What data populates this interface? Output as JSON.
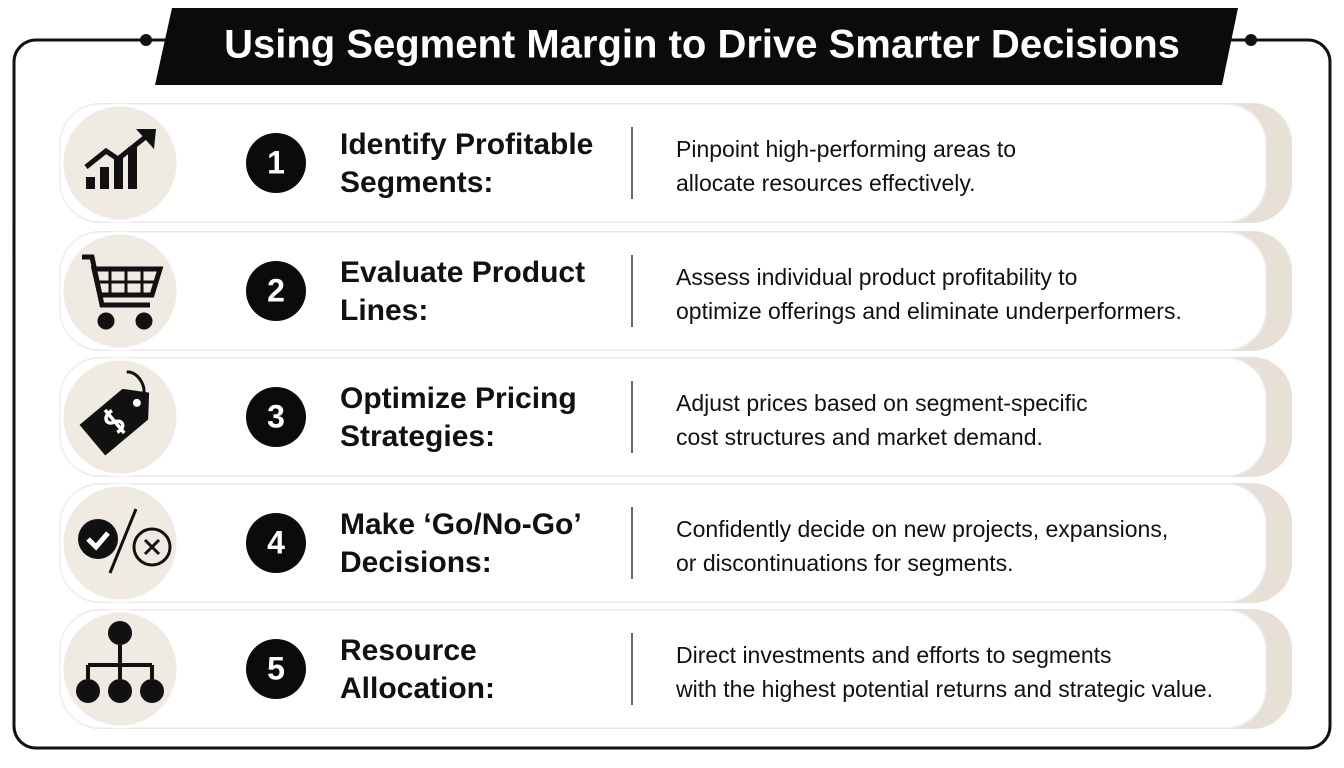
{
  "header": {
    "title": "Using Segment Margin to Drive Smarter Decisions"
  },
  "items": [
    {
      "number": 1,
      "heading": [
        "Identify Profitable",
        "Segments:"
      ],
      "description": [
        "Pinpoint high-performing areas to",
        "allocate resources effectively."
      ]
    },
    {
      "number": 2,
      "heading": [
        "Evaluate Product",
        "Lines:"
      ],
      "description": [
        "Assess individual product profitability to",
        "optimize offerings and eliminate underperformers."
      ]
    },
    {
      "number": 3,
      "heading": [
        "Optimize Pricing",
        "Strategies:"
      ],
      "description": [
        "Adjust prices based on segment-specific",
        "cost structures and market demand."
      ]
    },
    {
      "number": 4,
      "heading": [
        "Make ‘Go/No-Go’",
        "Decisions:"
      ],
      "description": [
        "Confidently decide on new projects, expansions,",
        "or discontinuations for segments."
      ]
    },
    {
      "number": 5,
      "heading": [
        "Resource",
        "Allocation:"
      ],
      "description": [
        "Direct investments and efforts to segments",
        "with the highest potential returns and strategic value."
      ]
    }
  ]
}
